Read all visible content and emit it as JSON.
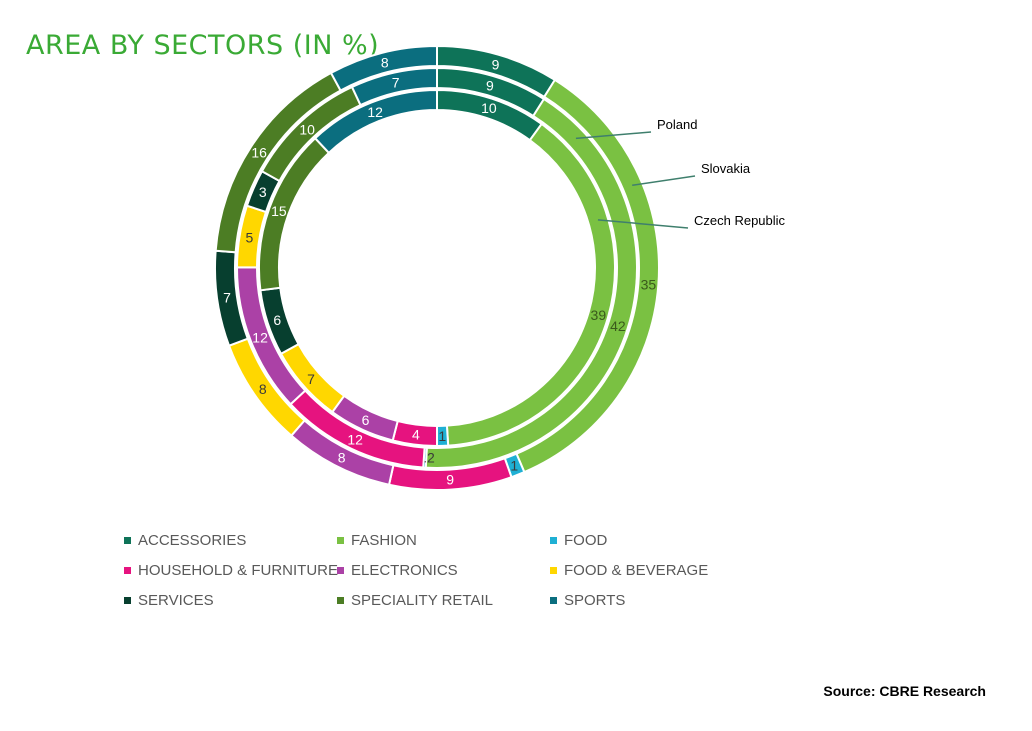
{
  "chart_data": {
    "type": "donut",
    "title": "AREA BY SECTORS (IN %)",
    "source": "Source: CBRE Research",
    "categories": [
      "ACCESSORIES",
      "FASHION",
      "FOOD",
      "HOUSEHOLD & FURNITURE",
      "ELECTRONICS",
      "FOOD & BEVERAGE",
      "SERVICES",
      "SPECIALITY RETAIL",
      "SPORTS"
    ],
    "colors": [
      "#0e7358",
      "#7ac142",
      "#1fb0d4",
      "#e6137f",
      "#ab41a6",
      "#ffd700",
      "#073f2f",
      "#4c7d24",
      "#0b6e7f"
    ],
    "series": [
      {
        "name": "Slovakia",
        "values": [
          9,
          35,
          1,
          9,
          8,
          8,
          7,
          16,
          8
        ],
        "labels": [
          "9",
          "35",
          "1",
          "9",
          "8",
          "8",
          "7",
          "16",
          "8"
        ]
      },
      {
        "name": "Poland",
        "values": [
          9,
          42,
          0.2,
          12,
          12,
          5,
          3,
          10,
          7
        ],
        "labels": [
          "9",
          "42",
          "0.2",
          "12",
          "12",
          "5",
          "3",
          "10",
          "7"
        ]
      },
      {
        "name": "Czech Republic",
        "values": [
          10,
          39,
          1,
          4,
          6,
          7,
          6,
          15,
          12
        ],
        "labels": [
          "10",
          "39",
          "1",
          "4",
          "6",
          "7",
          "6",
          "15",
          "12"
        ]
      }
    ],
    "legend_position": "bottom"
  }
}
